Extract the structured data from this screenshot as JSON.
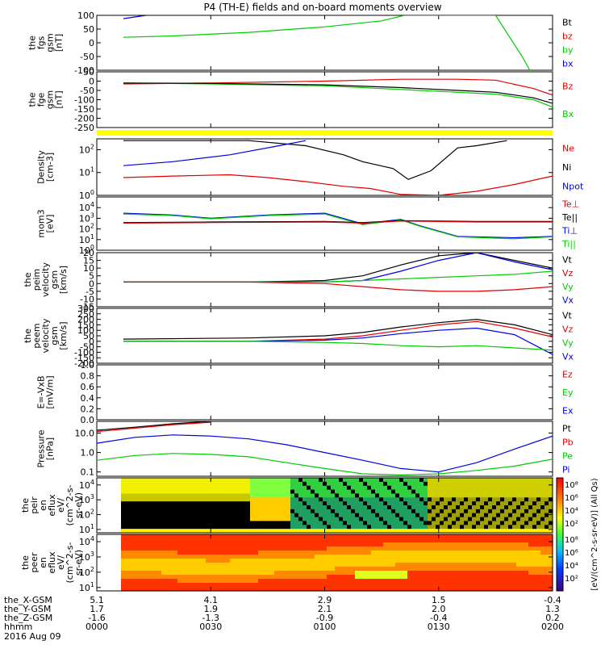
{
  "title": "P4 (TH-E) fields and on-board moments overview",
  "chart_data": [
    {
      "type": "line",
      "panel": "fgs_gsm_nT",
      "ylabel": [
        "the",
        "fgs",
        "gsm",
        "[nT]"
      ],
      "ylim": [
        -100,
        100
      ],
      "yticks": [
        -100,
        -50,
        0,
        50,
        100
      ],
      "legend": [
        "Bt",
        "bz",
        "by",
        "bx"
      ],
      "legend_colors": [
        "#000000",
        "#e00000",
        "#00cc00",
        "#0000e0"
      ],
      "series": [
        {
          "name": "bx",
          "color": "#0000e0",
          "x": [
            7,
            10,
            13
          ],
          "y": [
            88,
            94,
            100
          ]
        },
        {
          "name": "by",
          "color": "#00cc00",
          "x": [
            7,
            20,
            40,
            60,
            75,
            81,
            81.2,
            81.5,
            85,
            100,
            105,
            112,
            114
          ],
          "y": [
            20,
            25,
            38,
            58,
            80,
            100,
            100,
            100,
            100,
            100,
            100,
            -50,
            -100
          ]
        }
      ]
    },
    {
      "type": "line",
      "panel": "fge_gsm_nT",
      "ylabel": [
        "the",
        "fge",
        "gsm",
        "[nT]"
      ],
      "ylim": [
        -250,
        50
      ],
      "yticks": [
        -250,
        -200,
        -150,
        -100,
        -50,
        0,
        50
      ],
      "legend": [
        "Bz",
        "Bx"
      ],
      "legend_colors": [
        "#e00000",
        "#00cc00"
      ],
      "series": [
        {
          "name": "Bz",
          "color": "#e00000",
          "x": [
            7,
            30,
            60,
            80,
            95,
            105,
            115,
            120
          ],
          "y": [
            -15,
            -10,
            0,
            10,
            10,
            5,
            -40,
            -75
          ]
        },
        {
          "name": "Bx",
          "color": "#00cc00",
          "x": [
            7,
            30,
            60,
            80,
            95,
            105,
            115,
            120
          ],
          "y": [
            -10,
            -15,
            -25,
            -45,
            -60,
            -70,
            -100,
            -140
          ]
        },
        {
          "name": "Bt",
          "color": "#000000",
          "x": [
            7,
            30,
            60,
            80,
            95,
            105,
            115,
            120
          ],
          "y": [
            -10,
            -12,
            -20,
            -35,
            -50,
            -60,
            -90,
            -120
          ]
        }
      ]
    },
    {
      "type": "line",
      "panel": "density",
      "ylabel": [
        "Density",
        "[cm-3]"
      ],
      "scale": "log",
      "ylim": [
        1,
        300
      ],
      "yticks": [
        1,
        10,
        100
      ],
      "legend": [
        "Ne",
        "Ni",
        "Npot"
      ],
      "legend_colors": [
        "#e00000",
        "#000000",
        "#0000e0"
      ],
      "series": [
        {
          "name": "Ni",
          "color": "#000000",
          "x": [
            7,
            20,
            40,
            55,
            65,
            70,
            78,
            82,
            88,
            95,
            100,
            108
          ],
          "y": [
            250,
            250,
            250,
            150,
            60,
            30,
            15,
            5,
            12,
            120,
            150,
            250
          ]
        },
        {
          "name": "Npot",
          "color": "#0000e0",
          "x": [
            7,
            20,
            35,
            48,
            55
          ],
          "y": [
            20,
            30,
            60,
            150,
            250
          ]
        },
        {
          "name": "Ne",
          "color": "#e00000",
          "x": [
            7,
            20,
            35,
            45,
            55,
            65,
            72,
            80,
            90,
            100,
            110,
            120
          ],
          "y": [
            6,
            7,
            8,
            6,
            4,
            2.5,
            2,
            1.1,
            1,
            1.5,
            3,
            7
          ]
        }
      ]
    },
    {
      "type": "line",
      "panel": "temperature",
      "ylabel": [
        "mom3",
        "[eV]"
      ],
      "scale": "log",
      "ylim": [
        1,
        100000
      ],
      "yticks": [
        1,
        10,
        100,
        1000,
        10000
      ],
      "legend": [
        "Te⊥",
        "Te||",
        "Ti⊥",
        "Ti||"
      ],
      "legend_colors": [
        "#e00000",
        "#000000",
        "#0000e0",
        "#00cc00"
      ],
      "series": [
        {
          "name": "Ti⊥",
          "color": "#0000e0",
          "x": [
            7,
            20,
            30,
            45,
            60,
            70,
            80,
            85,
            95,
            110,
            120
          ],
          "y": [
            3000,
            2000,
            1000,
            2000,
            3000,
            300,
            800,
            200,
            20,
            15,
            20
          ]
        },
        {
          "name": "Ti||",
          "color": "#00cc00",
          "x": [
            7,
            20,
            30,
            45,
            60,
            70,
            80,
            85,
            95,
            110,
            120
          ],
          "y": [
            2500,
            1800,
            900,
            1800,
            2500,
            250,
            700,
            180,
            18,
            12,
            18
          ]
        },
        {
          "name": "Te||",
          "color": "#000000",
          "x": [
            7,
            30,
            60,
            70,
            80,
            100,
            120
          ],
          "y": [
            400,
            450,
            500,
            400,
            600,
            500,
            500
          ]
        },
        {
          "name": "Te⊥",
          "color": "#e00000",
          "x": [
            7,
            30,
            60,
            70,
            80,
            100,
            120
          ],
          "y": [
            350,
            400,
            450,
            350,
            550,
            450,
            450
          ]
        }
      ]
    },
    {
      "type": "line",
      "panel": "peim_velocity",
      "ylabel": [
        "the",
        "peim",
        "velocity",
        "gsm",
        "[km/s]"
      ],
      "ylim": [
        -15,
        20
      ],
      "yticks": [
        -15,
        -10,
        -5,
        0,
        5,
        10,
        15,
        20
      ],
      "legend": [
        "Vt",
        "Vz",
        "Vy",
        "Vx"
      ],
      "legend_colors": [
        "#000000",
        "#e00000",
        "#00cc00",
        "#0000e0"
      ],
      "series": [
        {
          "name": "Vt",
          "color": "#000000",
          "x": [
            7,
            40,
            60,
            70,
            80,
            90,
            100,
            110,
            120
          ],
          "y": [
            1,
            1,
            2,
            5,
            12,
            18,
            20,
            15,
            10
          ]
        },
        {
          "name": "Vx",
          "color": "#0000e0",
          "x": [
            7,
            40,
            60,
            70,
            80,
            90,
            100,
            110,
            120
          ],
          "y": [
            1,
            1,
            1,
            2,
            8,
            15,
            20,
            14,
            9
          ]
        },
        {
          "name": "Vy",
          "color": "#00cc00",
          "x": [
            7,
            40,
            60,
            70,
            80,
            90,
            100,
            110,
            120
          ],
          "y": [
            1,
            1,
            1,
            2,
            3,
            4,
            5,
            6,
            8
          ]
        },
        {
          "name": "Vz",
          "color": "#e00000",
          "x": [
            7,
            40,
            60,
            70,
            80,
            90,
            100,
            110,
            120
          ],
          "y": [
            1,
            1,
            0,
            -2,
            -4,
            -5,
            -5,
            -4,
            -2
          ]
        }
      ]
    },
    {
      "type": "line",
      "panel": "peem_velocity",
      "ylabel": [
        "the",
        "peem",
        "velocity",
        "gsm",
        "[km/s]"
      ],
      "ylim": [
        -200,
        300
      ],
      "yticks": [
        -200,
        -150,
        -100,
        -50,
        0,
        50,
        100,
        150,
        200,
        250,
        300
      ],
      "legend": [
        "Vt",
        "Vz",
        "Vy",
        "Vx"
      ],
      "legend_colors": [
        "#000000",
        "#e00000",
        "#00cc00",
        "#0000e0"
      ],
      "series": [
        {
          "name": "Vt",
          "color": "#000000",
          "x": [
            7,
            40,
            60,
            70,
            80,
            90,
            100,
            110,
            120
          ],
          "y": [
            20,
            30,
            50,
            80,
            130,
            170,
            200,
            150,
            60
          ]
        },
        {
          "name": "Vz",
          "color": "#e00000",
          "x": [
            7,
            40,
            60,
            70,
            80,
            90,
            100,
            110,
            120
          ],
          "y": [
            0,
            0,
            20,
            50,
            100,
            150,
            180,
            120,
            40
          ]
        },
        {
          "name": "Vx",
          "color": "#0000e0",
          "x": [
            7,
            40,
            60,
            70,
            80,
            90,
            100,
            110,
            120
          ],
          "y": [
            0,
            0,
            10,
            30,
            70,
            100,
            120,
            60,
            -120
          ]
        },
        {
          "name": "Vy",
          "color": "#00cc00",
          "x": [
            7,
            40,
            60,
            70,
            80,
            90,
            100,
            110,
            120
          ],
          "y": [
            0,
            0,
            -10,
            -20,
            -40,
            -50,
            -40,
            -60,
            -80
          ]
        }
      ]
    },
    {
      "type": "line",
      "panel": "efield",
      "ylabel": [
        "E=-VxB",
        "[mV/m]"
      ],
      "ylim": [
        0,
        1
      ],
      "yticks": [
        0.0,
        0.2,
        0.4,
        0.6,
        0.8,
        1.0
      ],
      "legend": [
        "Ez",
        "Ey",
        "Ex"
      ],
      "legend_colors": [
        "#e00000",
        "#00cc00",
        "#0000e0"
      ],
      "series": []
    },
    {
      "type": "line",
      "panel": "pressure",
      "ylabel": [
        "Pressure",
        "[nPa]"
      ],
      "scale": "log",
      "ylim": [
        0.06,
        40
      ],
      "yticks": [
        0.1,
        1.0,
        10.0
      ],
      "legend": [
        "Pt",
        "Pb",
        "Pe",
        "Pi"
      ],
      "legend_colors": [
        "#000000",
        "#e00000",
        "#00cc00",
        "#0000e0"
      ],
      "series": [
        {
          "name": "Pt",
          "color": "#000000",
          "x": [
            0,
            10,
            20,
            30
          ],
          "y": [
            14,
            20,
            30,
            40
          ]
        },
        {
          "name": "Pb",
          "color": "#e00000",
          "x": [
            0,
            10,
            20,
            30
          ],
          "y": [
            12,
            18,
            27,
            36
          ]
        },
        {
          "name": "Pi",
          "color": "#0000e0",
          "x": [
            0,
            10,
            20,
            30,
            40,
            50,
            60,
            70,
            80,
            90,
            100,
            110,
            120
          ],
          "y": [
            3,
            6,
            8,
            7,
            5,
            2.5,
            1,
            0.4,
            0.15,
            0.1,
            0.3,
            1.5,
            7
          ]
        },
        {
          "name": "Pe",
          "color": "#00cc00",
          "x": [
            0,
            10,
            20,
            30,
            40,
            50,
            60,
            70,
            80,
            90,
            100,
            110,
            120
          ],
          "y": [
            0.4,
            0.7,
            0.9,
            0.8,
            0.6,
            0.3,
            0.15,
            0.08,
            0.07,
            0.08,
            0.12,
            0.2,
            0.45
          ]
        }
      ]
    },
    {
      "type": "heatmap",
      "panel": "peir_en_eflux",
      "ylabel": [
        "the",
        "peir",
        "en",
        "eflux",
        "eV/",
        "(cm^2-s-",
        "sr-eV)"
      ],
      "scale": "log",
      "ylim": [
        6,
        30000
      ],
      "yticks": [
        10,
        100,
        1000,
        10000
      ]
    },
    {
      "type": "heatmap",
      "panel": "peer_en_eflux",
      "ylabel": [
        "the",
        "peer",
        "en",
        "eflux",
        "eV/",
        "(cm^2-s-",
        "sr-eV)"
      ],
      "scale": "log",
      "ylim": [
        6,
        30000
      ],
      "yticks": [
        10,
        100,
        1000,
        10000
      ]
    }
  ],
  "colorbar": {
    "ticks": [
      "10⁸",
      "10⁶",
      "10⁴",
      "10²"
    ],
    "label": "[eV/(cm^2-s-sr-eV)] (All Qs)"
  },
  "x_axis": {
    "ticks": [
      "0000",
      "0030",
      "0100",
      "0130",
      "0200"
    ],
    "rows": [
      {
        "label": "the_X-GSM",
        "values": [
          "5.1",
          "4.1",
          "2.9",
          "1.5",
          "-0.4"
        ]
      },
      {
        "label": "the_Y-GSM",
        "values": [
          "1.7",
          "1.9",
          "2.1",
          "2.0",
          "1.3"
        ]
      },
      {
        "label": "the_Z-GSM",
        "values": [
          "-1.6",
          "-1.3",
          "-0.9",
          "-0.4",
          "0.2"
        ]
      },
      {
        "label": "hhmm",
        "values": [
          "0000",
          "0030",
          "0100",
          "0130",
          "0200"
        ]
      }
    ],
    "date": "2016 Aug 09"
  }
}
